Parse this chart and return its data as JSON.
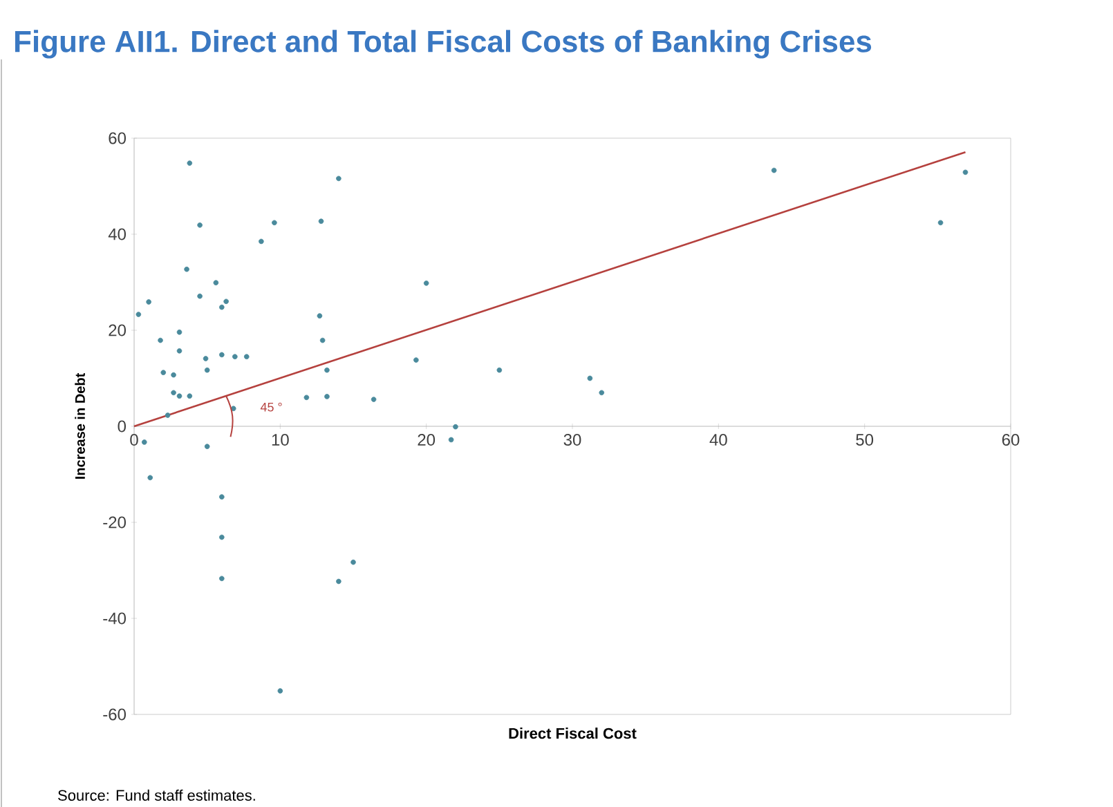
{
  "chart_data": {
    "type": "scatter",
    "title": "Figure AII1. Direct and Total Fiscal Costs of Banking Crises",
    "xlabel": "Direct Fiscal Cost",
    "ylabel": "Increase in Debt",
    "xlim": [
      0,
      60
    ],
    "ylim": [
      -60,
      60
    ],
    "xticks": [
      0,
      10,
      20,
      30,
      40,
      50,
      60
    ],
    "yticks": [
      -60,
      -40,
      -20,
      0,
      20,
      40,
      60
    ],
    "grid": false,
    "annotations": [
      "45 °",
      "Source: Fund staff estimates."
    ],
    "series": [
      {
        "type": "scatter",
        "color": "#4a8a9c",
        "marker": "circle",
        "x": [
          3.8,
          4.5,
          8.7,
          9.6,
          3.6,
          5.6,
          4.5,
          6.3,
          6.0,
          1.0,
          0.3,
          3.1,
          1.8,
          3.1,
          4.9,
          6.0,
          6.9,
          7.7,
          5.0,
          2.0,
          2.7,
          2.7,
          3.1,
          3.8,
          2.3,
          6.8,
          0.7,
          1.1,
          5.0,
          6.0,
          6.0,
          6.0,
          14.0,
          15.0,
          10.0,
          14.0,
          12.8,
          20.0,
          12.7,
          12.9,
          13.2,
          19.3,
          11.8,
          13.2,
          16.4,
          22.0,
          21.7,
          25.0,
          31.2,
          32.0,
          43.8,
          56.9,
          55.2
        ],
        "values": [
          54.8,
          41.9,
          38.5,
          42.4,
          32.7,
          29.9,
          27.1,
          26.0,
          24.8,
          25.9,
          23.3,
          19.6,
          17.9,
          15.7,
          14.1,
          14.9,
          14.5,
          14.5,
          11.7,
          11.2,
          10.7,
          7.0,
          6.3,
          6.3,
          2.3,
          3.7,
          -3.3,
          -10.7,
          -4.2,
          -14.7,
          -23.1,
          -31.7,
          -32.3,
          -28.3,
          -55.1,
          51.6,
          42.7,
          29.8,
          23.0,
          17.9,
          11.7,
          13.8,
          6.0,
          6.2,
          5.6,
          -0.1,
          -2.8,
          11.7,
          10.0,
          7.0,
          53.3,
          52.9,
          42.4
        ]
      },
      {
        "type": "line",
        "color": "#b5413e",
        "marker": "none",
        "line_style": "solid",
        "x": [
          0,
          56.9
        ],
        "values": [
          0,
          57.1
        ]
      }
    ]
  }
}
